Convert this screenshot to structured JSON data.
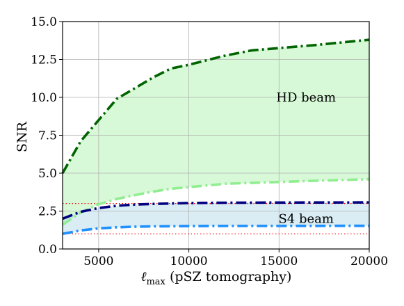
{
  "chart_data": {
    "type": "area",
    "title": "",
    "xlabel_main": "ℓ",
    "xlabel_sub": "max",
    "xlabel_rest": " (pSZ tomography)",
    "ylabel": "SNR",
    "xlim": [
      3000,
      20000
    ],
    "ylim": [
      0,
      15
    ],
    "grid": true,
    "x_ticks": [
      5000,
      10000,
      15000,
      20000
    ],
    "x_tick_labels": [
      "5000",
      "10000",
      "15000",
      "20000"
    ],
    "y_ticks": [
      0,
      2.5,
      5,
      7.5,
      10,
      12.5,
      15
    ],
    "y_tick_labels": [
      "0.0",
      "2.5",
      "5.0",
      "7.5",
      "10.0",
      "12.5",
      "15.0"
    ],
    "series": [
      {
        "key": "hd_upper",
        "color": "#006400",
        "x": [
          3000,
          4000,
          5000,
          6000,
          7000,
          8000,
          9000,
          10000,
          11000,
          12000,
          13500,
          15000,
          17000,
          20000
        ],
        "values": [
          5.0,
          7.1,
          8.5,
          9.9,
          10.6,
          11.3,
          11.9,
          12.15,
          12.45,
          12.75,
          13.1,
          13.25,
          13.45,
          13.8
        ]
      },
      {
        "key": "hd_lower",
        "color": "#90ee90",
        "x": [
          3000,
          4000,
          5000,
          6000,
          7000,
          8000,
          9000,
          10000,
          12000,
          15000,
          17000,
          20000
        ],
        "values": [
          1.6,
          2.4,
          2.95,
          3.3,
          3.55,
          3.78,
          3.97,
          4.08,
          4.3,
          4.42,
          4.5,
          4.6
        ]
      },
      {
        "key": "s4_upper",
        "color": "#000080",
        "x": [
          3000,
          4000,
          5000,
          6000,
          7000,
          8000,
          10000,
          12000,
          15000,
          20000
        ],
        "values": [
          2.0,
          2.45,
          2.7,
          2.85,
          2.93,
          2.97,
          3.03,
          3.05,
          3.06,
          3.07
        ]
      },
      {
        "key": "s4_lower",
        "color": "#1e90ff",
        "x": [
          3000,
          4000,
          5000,
          6000,
          7000,
          8000,
          10000,
          12000,
          15000,
          20000
        ],
        "values": [
          1.0,
          1.22,
          1.36,
          1.43,
          1.47,
          1.49,
          1.51,
          1.52,
          1.52,
          1.53
        ]
      }
    ],
    "bands": [
      {
        "between": [
          "hd_lower",
          "hd_upper"
        ],
        "color": "#90ee90",
        "opacity": 0.35
      },
      {
        "between": [
          "s4_lower",
          "s4_upper"
        ],
        "color": "#add8e6",
        "opacity": 0.45
      }
    ],
    "reference_lines": [
      {
        "y": 3.0,
        "color": "#ff0000",
        "style": "dotted"
      },
      {
        "y": 1.0,
        "color": "#ff0000",
        "style": "dotted"
      }
    ],
    "annotations": [
      {
        "text": "HD beam",
        "x": 16500,
        "y": 10.0
      },
      {
        "text": "S4 beam",
        "x": 16500,
        "y": 2.0
      }
    ]
  }
}
